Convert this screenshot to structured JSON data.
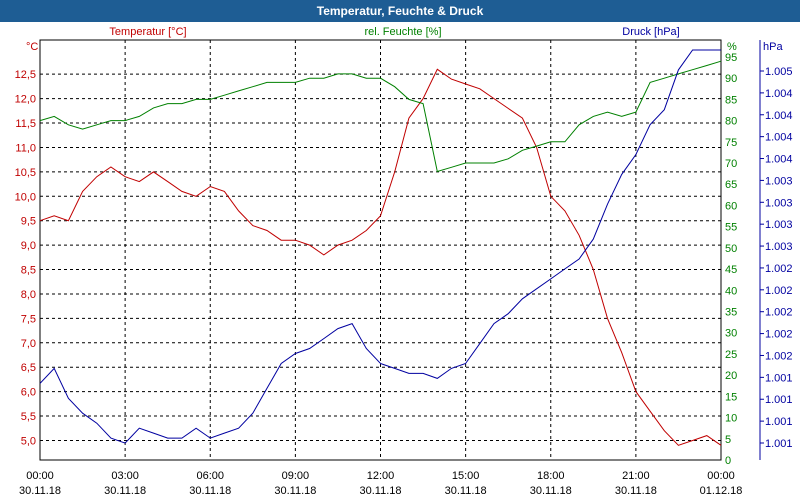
{
  "chart_data": {
    "type": "line",
    "title": "Temperatur, Feuchte & Druck",
    "colors": {
      "title_bg": "#1e5d94",
      "temperature": "#c00000",
      "humidity": "#008000",
      "pressure": "#0000a0",
      "grid": "#000000"
    },
    "x_ticks": [
      {
        "time": "00:00",
        "date": "30.11.18"
      },
      {
        "time": "03:00",
        "date": "30.11.18"
      },
      {
        "time": "06:00",
        "date": "30.11.18"
      },
      {
        "time": "09:00",
        "date": "30.11.18"
      },
      {
        "time": "12:00",
        "date": "30.11.18"
      },
      {
        "time": "15:00",
        "date": "30.11.18"
      },
      {
        "time": "18:00",
        "date": "30.11.18"
      },
      {
        "time": "21:00",
        "date": "30.11.18"
      },
      {
        "time": "00:00",
        "date": "01.12.18"
      }
    ],
    "xlim_hours": [
      0,
      24
    ],
    "left_axis": {
      "unit": "°C",
      "ylim": [
        4.6,
        13.2
      ],
      "ticks": [
        "5,0",
        "5,5",
        "6,0",
        "6,5",
        "7,0",
        "7,5",
        "8,0",
        "8,5",
        "9,0",
        "9,5",
        "10,0",
        "10,5",
        "11,0",
        "11,5",
        "12,0",
        "12,5"
      ]
    },
    "right_axis_1": {
      "unit": "%",
      "ylim": [
        0,
        99
      ],
      "ticks": [
        "0",
        "5",
        "10",
        "15",
        "20",
        "25",
        "30",
        "35",
        "40",
        "45",
        "50",
        "55",
        "60",
        "65",
        "70",
        "75",
        "80",
        "85",
        "90",
        "95"
      ]
    },
    "right_axis_2": {
      "unit": "hPa",
      "ylim": [
        1000.98,
        1005.2
      ],
      "ticks": [
        "1.001",
        "1.001",
        "1.001",
        "1.001",
        "1.002",
        "1.002",
        "1.002",
        "1.002",
        "1.002",
        "1.003",
        "1.003",
        "1.003",
        "1.003",
        "1.004",
        "1.004",
        "1.004",
        "1.004",
        "1.005"
      ]
    },
    "series": [
      {
        "name": "Temperatur [°C]",
        "key": "temperature",
        "x": [
          0,
          0.5,
          1,
          1.5,
          2,
          2.5,
          3,
          3.5,
          4,
          4.5,
          5,
          5.5,
          6,
          6.5,
          7,
          7.5,
          8,
          8.5,
          9,
          9.5,
          10,
          10.5,
          11,
          11.5,
          12,
          12.5,
          13,
          13.5,
          14,
          14.5,
          15,
          15.5,
          16,
          16.5,
          17,
          17.5,
          18,
          18.5,
          19,
          19.5,
          20,
          20.5,
          21,
          21.5,
          22,
          22.5,
          23,
          23.5,
          24
        ],
        "values": [
          9.5,
          9.6,
          9.5,
          10.1,
          10.4,
          10.6,
          10.4,
          10.3,
          10.5,
          10.3,
          10.1,
          10.0,
          10.2,
          10.1,
          9.7,
          9.4,
          9.3,
          9.1,
          9.1,
          9.0,
          8.8,
          9.0,
          9.1,
          9.3,
          9.6,
          10.5,
          11.6,
          12.0,
          12.6,
          12.4,
          12.3,
          12.2,
          12.0,
          11.8,
          11.6,
          11.0,
          10.0,
          9.7,
          9.2,
          8.5,
          7.5,
          6.8,
          6.0,
          5.6,
          5.2,
          4.9,
          5.0,
          5.1,
          4.9
        ]
      },
      {
        "name": "rel. Feuchte [%]",
        "key": "humidity",
        "x": [
          0,
          0.5,
          1,
          1.5,
          2,
          2.5,
          3,
          3.5,
          4,
          4.5,
          5,
          5.5,
          6,
          6.5,
          7,
          7.5,
          8,
          8.5,
          9,
          9.5,
          10,
          10.5,
          11,
          11.5,
          12,
          12.5,
          13,
          13.5,
          14,
          14.5,
          15,
          15.5,
          16,
          16.5,
          17,
          17.5,
          18,
          18.5,
          19,
          19.5,
          20,
          20.5,
          21,
          21.5,
          22,
          22.5,
          23,
          23.5,
          24
        ],
        "values": [
          80,
          81,
          79,
          78,
          79,
          80,
          80,
          81,
          83,
          84,
          84,
          85,
          85,
          86,
          87,
          88,
          89,
          89,
          89,
          90,
          90,
          91,
          91,
          90,
          90,
          88,
          85,
          84,
          68,
          69,
          70,
          70,
          70,
          71,
          73,
          74,
          75,
          75,
          79,
          81,
          82,
          81,
          82,
          89,
          90,
          91,
          92,
          93,
          94
        ]
      },
      {
        "name": "Druck [hPa]",
        "key": "pressure",
        "x": [
          0,
          0.5,
          1,
          1.5,
          2,
          2.5,
          3,
          3.5,
          4,
          4.5,
          5,
          5.5,
          6,
          6.5,
          7,
          7.5,
          8,
          8.5,
          9,
          9.5,
          10,
          10.5,
          11,
          11.5,
          12,
          12.5,
          13,
          13.5,
          14,
          14.5,
          15,
          15.5,
          16,
          16.5,
          17,
          17.5,
          18,
          18.5,
          19,
          19.5,
          20,
          20.5,
          21,
          21.5,
          22,
          22.5,
          23,
          23.5,
          24
        ],
        "values": [
          1001.75,
          1001.9,
          1001.6,
          1001.45,
          1001.35,
          1001.2,
          1001.15,
          1001.3,
          1001.25,
          1001.2,
          1001.2,
          1001.3,
          1001.2,
          1001.25,
          1001.3,
          1001.45,
          1001.7,
          1001.95,
          1002.05,
          1002.1,
          1002.2,
          1002.3,
          1002.35,
          1002.1,
          1001.95,
          1001.9,
          1001.85,
          1001.85,
          1001.8,
          1001.9,
          1001.95,
          1002.15,
          1002.35,
          1002.45,
          1002.6,
          1002.7,
          1002.8,
          1002.9,
          1003.0,
          1003.2,
          1003.55,
          1003.85,
          1004.05,
          1004.35,
          1004.5,
          1004.9,
          1005.1,
          1005.1,
          1005.1
        ]
      }
    ],
    "legend": [
      "Temperatur [°C]",
      "rel. Feuchte [%]",
      "Druck [hPa]"
    ]
  }
}
